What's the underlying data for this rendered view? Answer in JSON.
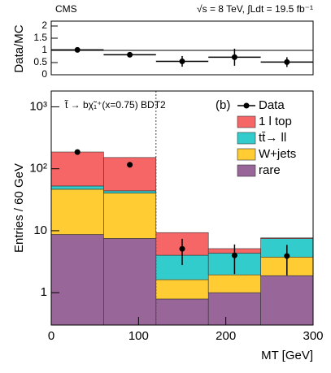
{
  "chart_data": [
    {
      "type": "errorbar",
      "annotations": [
        "CMS",
        "√s = 8 TeV,  ∫Ldt = 19.5 fb⁻¹"
      ],
      "y_label": "Data/MC",
      "bins": [
        0,
        60,
        120,
        180,
        240,
        300
      ],
      "x": [
        30,
        90,
        150,
        210,
        270
      ],
      "values": [
        1.02,
        0.82,
        0.55,
        0.72,
        0.52
      ],
      "errors": [
        0.07,
        0.07,
        0.22,
        0.35,
        0.2
      ],
      "xlim": [
        0,
        300
      ],
      "ylim": [
        0,
        2.2
      ],
      "yticks": [
        0,
        0.5,
        1,
        1.5,
        2
      ],
      "reference_line": 1
    },
    {
      "type": "stacked_histogram",
      "annotations": [
        "t̃ → bχ̃₁⁺(x=0.75) BDT2",
        "(b)"
      ],
      "x_label": "MT [GeV]",
      "y_label": "Entries / 60 GeV",
      "log_y": true,
      "legend": "upper right",
      "bins": [
        0,
        60,
        120,
        180,
        240,
        300
      ],
      "series": [
        {
          "name": "rare",
          "color": "#996699",
          "values": [
            8.7,
            7.5,
            0.79,
            1.0,
            1.88
          ]
        },
        {
          "name": "W+jets",
          "color": "#ffcc33",
          "values": [
            38,
            33,
            0.83,
            0.94,
            1.88
          ]
        },
        {
          "name": "tt̄→ ll",
          "color": "#33cccc",
          "values": [
            6,
            3.5,
            2.4,
            2.4,
            3.7
          ]
        },
        {
          "name": "1 l top",
          "color": "#f76666",
          "values": [
            134,
            108,
            5.3,
            0.8,
            0.2
          ]
        }
      ],
      "data": {
        "name": "Data",
        "x": [
          30,
          90,
          150,
          210,
          270
        ],
        "values": [
          186,
          116,
          5.1,
          4.0,
          3.9
        ],
        "errors": [
          14,
          11,
          2.3,
          2.0,
          2.0
        ]
      },
      "divider": 120,
      "xlim": [
        0,
        300
      ],
      "ylim": [
        0.3,
        1800
      ],
      "xticks": [
        0,
        100,
        200,
        300
      ],
      "yticks": [
        1,
        10,
        {
          "value": 100,
          "label": "10²"
        },
        {
          "value": 1000,
          "label": "10³"
        }
      ]
    }
  ]
}
